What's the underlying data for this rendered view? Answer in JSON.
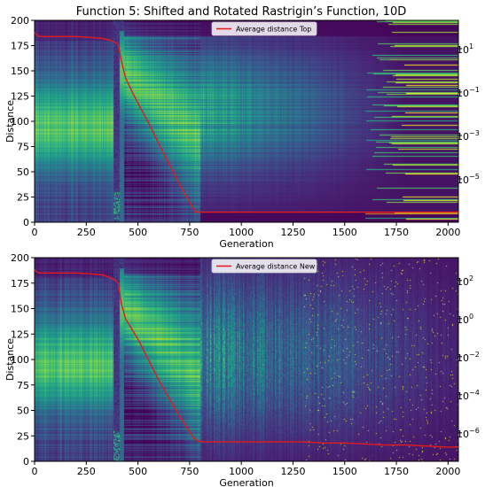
{
  "title": "Function 5: Shifted and Rotated Rastrigin’s Function, 10D",
  "colors": {
    "line": "#e41a1c",
    "background": "#440154"
  },
  "colormap": "viridis",
  "chart_data": [
    {
      "type": "heatmap",
      "name": "top",
      "xlabel": "Generation",
      "ylabel": "Distance",
      "xlim": [
        0,
        2050
      ],
      "ylim": [
        0,
        200
      ],
      "x_ticks": [
        0,
        250,
        500,
        750,
        1000,
        1250,
        1500,
        1750,
        2000
      ],
      "y_ticks": [
        0,
        25,
        50,
        75,
        100,
        125,
        150,
        175,
        200
      ],
      "colorbar": {
        "scale": "log",
        "ticks": [
          {
            "value": 10,
            "label": "10",
            "exp": "1"
          },
          {
            "value": 0.1,
            "label": "10",
            "exp": "−1"
          },
          {
            "value": 0.001,
            "label": "10",
            "exp": "−3"
          },
          {
            "value": 1e-05,
            "label": "10",
            "exp": "−5"
          }
        ]
      },
      "legend": {
        "label": "Average distance Top",
        "position": "top-center"
      },
      "series": [
        {
          "name": "Average distance Top",
          "x": [
            0,
            20,
            60,
            120,
            200,
            280,
            330,
            370,
            390,
            405,
            420,
            440,
            470,
            500,
            550,
            600,
            650,
            700,
            750,
            780,
            800,
            900,
            1000,
            1200,
            1400,
            1600,
            1800,
            2000,
            2050
          ],
          "y": [
            188,
            184,
            184,
            184,
            184,
            183,
            182,
            180,
            178,
            176,
            160,
            143,
            130,
            118,
            99,
            78,
            58,
            38,
            20,
            10,
            10,
            10,
            10,
            10,
            10,
            10,
            10,
            10,
            10
          ]
        }
      ]
    },
    {
      "type": "heatmap",
      "name": "new",
      "xlabel": "Generation",
      "ylabel": "Distance",
      "xlim": [
        0,
        2050
      ],
      "ylim": [
        0,
        200
      ],
      "x_ticks": [
        0,
        250,
        500,
        750,
        1000,
        1250,
        1500,
        1750,
        2000
      ],
      "y_ticks": [
        0,
        25,
        50,
        75,
        100,
        125,
        150,
        175,
        200
      ],
      "colorbar": {
        "scale": "log",
        "ticks": [
          {
            "value": 100,
            "label": "10",
            "exp": "2"
          },
          {
            "value": 1,
            "label": "10",
            "exp": "0"
          },
          {
            "value": 0.01,
            "label": "10",
            "exp": "−2"
          },
          {
            "value": 0.0001,
            "label": "10",
            "exp": "−4"
          },
          {
            "value": 1e-06,
            "label": "10",
            "exp": "−6"
          }
        ]
      },
      "legend": {
        "label": "Average distance New",
        "position": "top-center"
      },
      "series": [
        {
          "name": "Average distance New",
          "x": [
            0,
            20,
            60,
            120,
            200,
            280,
            330,
            370,
            390,
            405,
            420,
            440,
            470,
            500,
            550,
            600,
            650,
            700,
            740,
            770,
            790,
            820,
            900,
            1000,
            1100,
            1200,
            1300,
            1400,
            1500,
            1600,
            1700,
            1800,
            1900,
            2000,
            2050
          ],
          "y": [
            188,
            185,
            185,
            185,
            185,
            184,
            183,
            180,
            178,
            175,
            155,
            140,
            130,
            120,
            100,
            80,
            62,
            45,
            32,
            23,
            20,
            19,
            19,
            19,
            19,
            19,
            19,
            18,
            18,
            17,
            16,
            16,
            15,
            14,
            14
          ]
        }
      ]
    }
  ]
}
